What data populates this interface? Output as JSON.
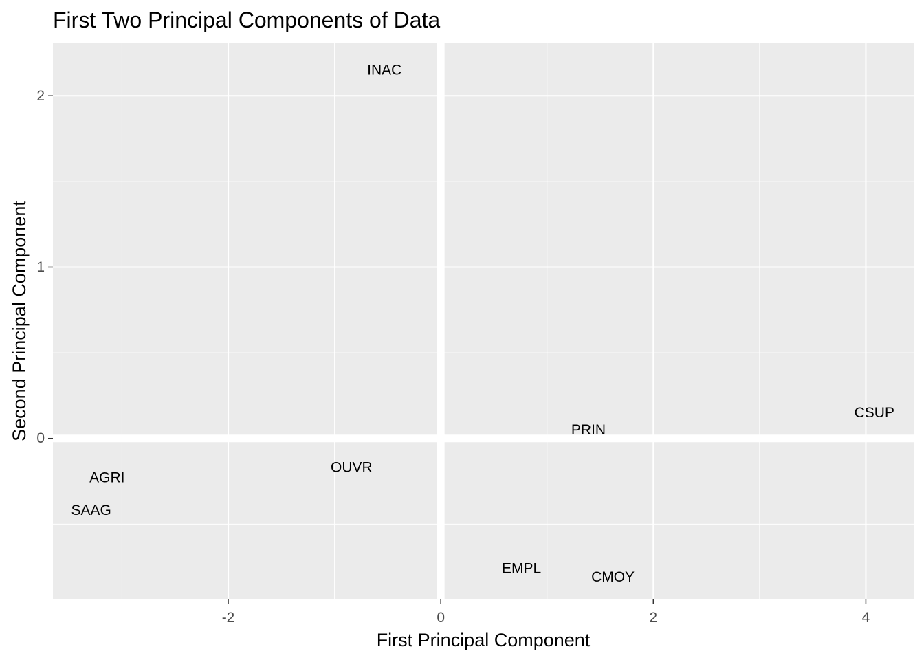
{
  "chart_data": {
    "type": "scatter",
    "title": "First Two Principal Components of Data",
    "xlabel": "First Principal Component",
    "ylabel": "Second Principal Component",
    "xlim": [
      -3.65,
      4.45
    ],
    "ylim": [
      -0.94,
      2.31
    ],
    "x_ticks": [
      -2,
      0,
      2,
      4
    ],
    "y_ticks": [
      0,
      1,
      2
    ],
    "x_tick_labels": [
      "-2",
      "0",
      "2",
      "4"
    ],
    "y_tick_labels": [
      "0",
      "1",
      "2"
    ],
    "grid": true,
    "reference_lines": {
      "x": 0,
      "y": 0
    },
    "panel_background": "#ebebeb",
    "grid_color": "#ffffff",
    "label_color": "#000000",
    "points": [
      {
        "label": "INAC",
        "x": -0.53,
        "y": 2.15
      },
      {
        "label": "CSUP",
        "x": 4.08,
        "y": 0.15
      },
      {
        "label": "PRIN",
        "x": 1.39,
        "y": 0.05
      },
      {
        "label": "OUVR",
        "x": -0.84,
        "y": -0.17
      },
      {
        "label": "AGRI",
        "x": -3.14,
        "y": -0.23
      },
      {
        "label": "SAAG",
        "x": -3.29,
        "y": -0.42
      },
      {
        "label": "EMPL",
        "x": 0.76,
        "y": -0.76
      },
      {
        "label": "CMOY",
        "x": 1.62,
        "y": -0.81
      }
    ]
  }
}
